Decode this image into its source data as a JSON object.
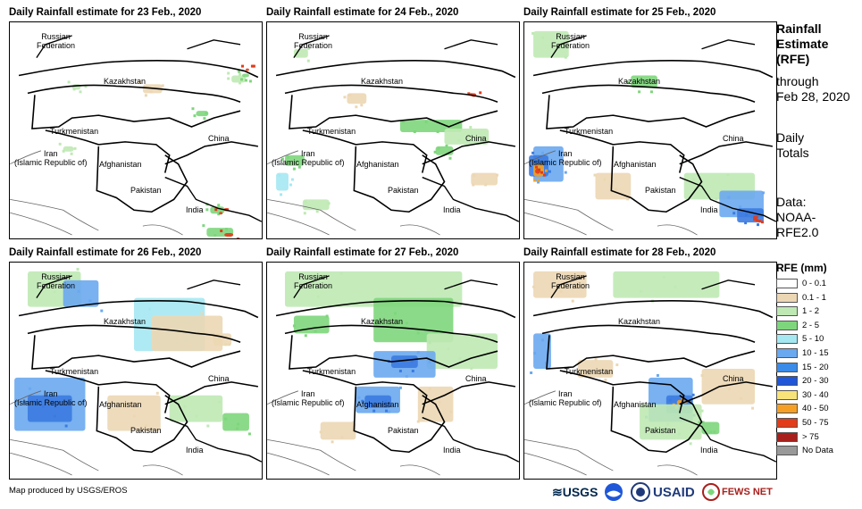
{
  "panels": [
    {
      "title": "Daily Rainfall estimate for 23 Feb., 2020",
      "pattern": [
        [
          "#bfe9b4",
          70,
          70,
          10,
          6
        ],
        [
          "#bfe9b4",
          250,
          60,
          16,
          8
        ],
        [
          "#7ed67c",
          262,
          58,
          8,
          4
        ],
        [
          "#e23c1a",
          266,
          52,
          4,
          3
        ],
        [
          "#bfe9b4",
          60,
          140,
          12,
          6
        ],
        [
          "#7ed67c",
          226,
          208,
          16,
          8
        ],
        [
          "#e23c1a",
          236,
          214,
          4,
          3
        ],
        [
          "#7ed67c",
          222,
          232,
          30,
          10
        ],
        [
          "#e23c1a",
          242,
          238,
          10,
          4
        ],
        [
          "#ecd7b4",
          150,
          70,
          22,
          10
        ],
        [
          "#7ed67c",
          210,
          100,
          14,
          6
        ]
      ]
    },
    {
      "title": "Daily Rainfall estimate for 24 Feb., 2020",
      "pattern": [
        [
          "#bfe9b4",
          30,
          30,
          16,
          10
        ],
        [
          "#7ed67c",
          150,
          110,
          70,
          14
        ],
        [
          "#bfe9b4",
          200,
          120,
          50,
          18
        ],
        [
          "#7ed67c",
          20,
          150,
          22,
          12
        ],
        [
          "#a5e8f2",
          10,
          170,
          14,
          20
        ],
        [
          "#bfe9b4",
          40,
          200,
          30,
          12
        ],
        [
          "#e23c1a",
          230,
          80,
          6,
          4
        ],
        [
          "#ecd7b4",
          90,
          80,
          22,
          12
        ],
        [
          "#7ed67c",
          190,
          140,
          20,
          10
        ],
        [
          "#ecd7b4",
          230,
          170,
          30,
          14
        ]
      ]
    },
    {
      "title": "Daily Rainfall estimate for 25 Feb., 2020",
      "pattern": [
        [
          "#bfe9b4",
          10,
          10,
          40,
          30
        ],
        [
          "#6aa8f0",
          10,
          140,
          34,
          40
        ],
        [
          "#3b7be0",
          5,
          150,
          22,
          24
        ],
        [
          "#f5a024",
          10,
          160,
          12,
          14
        ],
        [
          "#e23c1a",
          12,
          165,
          6,
          6
        ],
        [
          "#ecd7b4",
          80,
          170,
          40,
          30
        ],
        [
          "#bfe9b4",
          180,
          170,
          80,
          30
        ],
        [
          "#6aa8f0",
          220,
          190,
          50,
          30
        ],
        [
          "#3b7be0",
          240,
          210,
          30,
          16
        ],
        [
          "#e23c1a",
          258,
          218,
          6,
          4
        ],
        [
          "#7ed67c",
          120,
          60,
          30,
          14
        ]
      ]
    },
    {
      "title": "Daily Rainfall estimate for 26 Feb., 2020",
      "pattern": [
        [
          "#bfe9b4",
          20,
          10,
          60,
          40
        ],
        [
          "#6aa8f0",
          60,
          20,
          40,
          30
        ],
        [
          "#a5e8f2",
          140,
          40,
          80,
          60
        ],
        [
          "#ecd7b4",
          160,
          60,
          80,
          40
        ],
        [
          "#6aa8f0",
          5,
          130,
          80,
          60
        ],
        [
          "#3b7be0",
          20,
          150,
          50,
          30
        ],
        [
          "#ecd7b4",
          110,
          150,
          60,
          40
        ],
        [
          "#bfe9b4",
          180,
          150,
          60,
          30
        ],
        [
          "#7ed67c",
          240,
          170,
          30,
          20
        ],
        [
          "#ecd7b4",
          230,
          80,
          20,
          14
        ]
      ]
    },
    {
      "title": "Daily Rainfall estimate for 27 Feb., 2020",
      "pattern": [
        [
          "#bfe9b4",
          20,
          10,
          200,
          40
        ],
        [
          "#7ed67c",
          120,
          40,
          90,
          50
        ],
        [
          "#bfe9b4",
          180,
          80,
          80,
          40
        ],
        [
          "#6aa8f0",
          120,
          100,
          70,
          30
        ],
        [
          "#3b7be0",
          140,
          105,
          30,
          14
        ],
        [
          "#6aa8f0",
          100,
          140,
          50,
          30
        ],
        [
          "#3b7be0",
          110,
          150,
          30,
          14
        ],
        [
          "#ecd7b4",
          170,
          140,
          40,
          40
        ],
        [
          "#7ed67c",
          30,
          60,
          40,
          20
        ],
        [
          "#ecd7b4",
          60,
          180,
          40,
          20
        ]
      ]
    },
    {
      "title": "Daily Rainfall estimate for 28 Feb., 2020",
      "pattern": [
        [
          "#ecd7b4",
          10,
          10,
          60,
          30
        ],
        [
          "#bfe9b4",
          100,
          10,
          120,
          30
        ],
        [
          "#6aa8f0",
          10,
          80,
          20,
          40
        ],
        [
          "#ecd7b4",
          60,
          110,
          40,
          20
        ],
        [
          "#6aa8f0",
          140,
          130,
          50,
          50
        ],
        [
          "#3b7be0",
          160,
          150,
          30,
          20
        ],
        [
          "#f5a024",
          172,
          155,
          6,
          6
        ],
        [
          "#bfe9b4",
          130,
          160,
          70,
          40
        ],
        [
          "#ecd7b4",
          200,
          120,
          60,
          40
        ],
        [
          "#7ed67c",
          200,
          180,
          20,
          14
        ]
      ]
    }
  ],
  "place_labels": {
    "russia": "Russian\nFederation",
    "kazakhstan": "Kazakhstan",
    "turkmenistan": "Turkmenistan",
    "iran": "Iran\n(Islamic Republic of)",
    "afghanistan": "Afghanistan",
    "pakistan": "Pakistan",
    "china": "China",
    "india": "India"
  },
  "side": {
    "heading": "Rainfall Estimate (RFE)",
    "through": "through",
    "date": "Feb 28, 2020",
    "daily": "Daily Totals",
    "data": "Data: NOAA-RFE2.0"
  },
  "legend": {
    "title": "RFE (mm)",
    "items": [
      {
        "label": "0 - 0.1",
        "color": "#ffffff"
      },
      {
        "label": "0.1 - 1",
        "color": "#ecd7b4"
      },
      {
        "label": "1 - 2",
        "color": "#bfe9b4"
      },
      {
        "label": "2 - 5",
        "color": "#7ed67c"
      },
      {
        "label": "5 - 10",
        "color": "#a5e8f2"
      },
      {
        "label": "10 - 15",
        "color": "#6aa8f0"
      },
      {
        "label": "15 - 20",
        "color": "#3b8be8"
      },
      {
        "label": "20 - 30",
        "color": "#1f57d8"
      },
      {
        "label": "30 - 40",
        "color": "#f7e37a"
      },
      {
        "label": "40 - 50",
        "color": "#f5a024"
      },
      {
        "label": "50 - 75",
        "color": "#e23c1a"
      },
      {
        "label": "> 75",
        "color": "#a8201c"
      },
      {
        "label": "No Data",
        "color": "#999999"
      }
    ]
  },
  "credit": "Map produced by USGS/EROS",
  "logos": {
    "usgs": "≋USGS",
    "usaid": "USAID",
    "fews": "FEWS NET"
  }
}
